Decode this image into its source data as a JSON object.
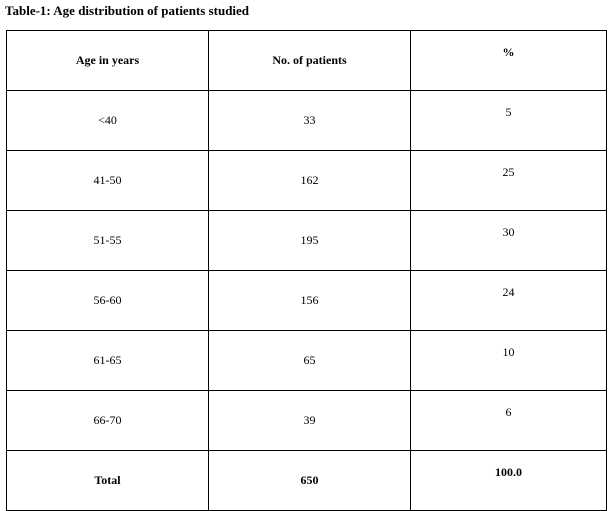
{
  "caption": "Table-1: Age distribution of patients studied",
  "table": {
    "headers": [
      "Age in years",
      "No. of patients",
      "%"
    ],
    "rows": [
      [
        "<40",
        "33",
        "5"
      ],
      [
        "41-50",
        "162",
        "25"
      ],
      [
        "51-55",
        "195",
        "30"
      ],
      [
        "56-60",
        "156",
        "24"
      ],
      [
        "61-65",
        "65",
        "10"
      ],
      [
        "66-70",
        "39",
        "6"
      ]
    ],
    "total": [
      "Total",
      "650",
      "100.0"
    ]
  }
}
